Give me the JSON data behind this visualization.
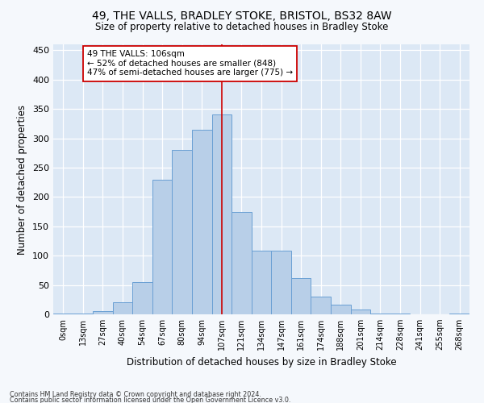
{
  "title1": "49, THE VALLS, BRADLEY STOKE, BRISTOL, BS32 8AW",
  "title2": "Size of property relative to detached houses in Bradley Stoke",
  "xlabel": "Distribution of detached houses by size in Bradley Stoke",
  "ylabel": "Number of detached properties",
  "footnote1": "Contains HM Land Registry data © Crown copyright and database right 2024.",
  "footnote2": "Contains public sector information licensed under the Open Government Licence v3.0.",
  "bar_labels": [
    "0sqm",
    "13sqm",
    "27sqm",
    "40sqm",
    "54sqm",
    "67sqm",
    "80sqm",
    "94sqm",
    "107sqm",
    "121sqm",
    "134sqm",
    "147sqm",
    "161sqm",
    "174sqm",
    "188sqm",
    "201sqm",
    "214sqm",
    "228sqm",
    "241sqm",
    "255sqm",
    "268sqm"
  ],
  "bar_values": [
    2,
    2,
    5,
    20,
    55,
    230,
    280,
    315,
    340,
    175,
    108,
    108,
    62,
    30,
    16,
    8,
    2,
    2,
    0,
    0,
    2
  ],
  "bar_color": "#b8cfe8",
  "bar_edge_color": "#6aa0d4",
  "vline_x": 8,
  "vline_color": "#cc0000",
  "annotation_text": "49 THE VALLS: 106sqm\n← 52% of detached houses are smaller (848)\n47% of semi-detached houses are larger (775) →",
  "annotation_box_color": "#ffffff",
  "annotation_box_edge": "#cc0000",
  "ylim": [
    0,
    460
  ],
  "yticks": [
    0,
    50,
    100,
    150,
    200,
    250,
    300,
    350,
    400,
    450
  ],
  "background_color": "#dce8f5",
  "grid_color": "#ffffff",
  "fig_background": "#f5f8fc"
}
